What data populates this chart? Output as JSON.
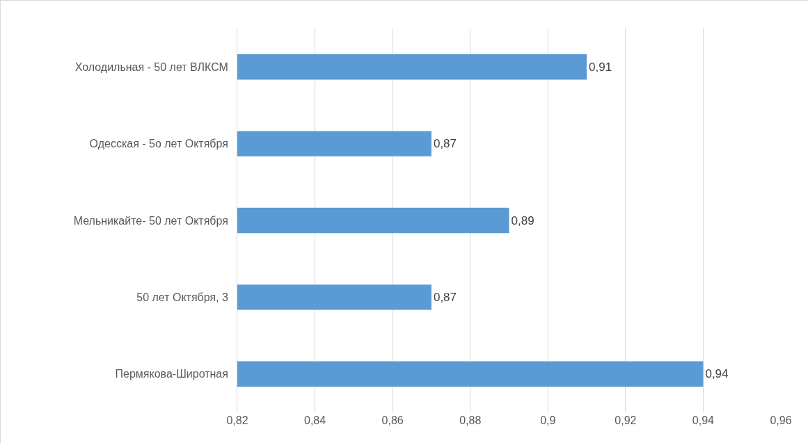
{
  "chart_data": {
    "type": "bar",
    "orientation": "horizontal",
    "categories": [
      "Холодильная - 50 лет ВЛКСМ",
      "Одесская - 5о лет Октября",
      "Мельникайте- 50 лет Октября",
      "50 лет Октября, 3",
      "Пермякова-Широтная"
    ],
    "values": [
      0.91,
      0.87,
      0.89,
      0.87,
      0.94
    ],
    "value_labels": [
      "0,91",
      "0,87",
      "0,89",
      "0,87",
      "0,94"
    ],
    "color": "#5b9bd5",
    "xlim": [
      0.82,
      0.96
    ],
    "xticks": [
      {
        "value": 0.82,
        "label": "0,82"
      },
      {
        "value": 0.84,
        "label": "0,84"
      },
      {
        "value": 0.86,
        "label": "0,86"
      },
      {
        "value": 0.88,
        "label": "0,88"
      },
      {
        "value": 0.9,
        "label": "0,9"
      },
      {
        "value": 0.92,
        "label": "0,92"
      },
      {
        "value": 0.94,
        "label": "0,94"
      },
      {
        "value": 0.96,
        "label": "0,96"
      }
    ],
    "grid": "x"
  }
}
